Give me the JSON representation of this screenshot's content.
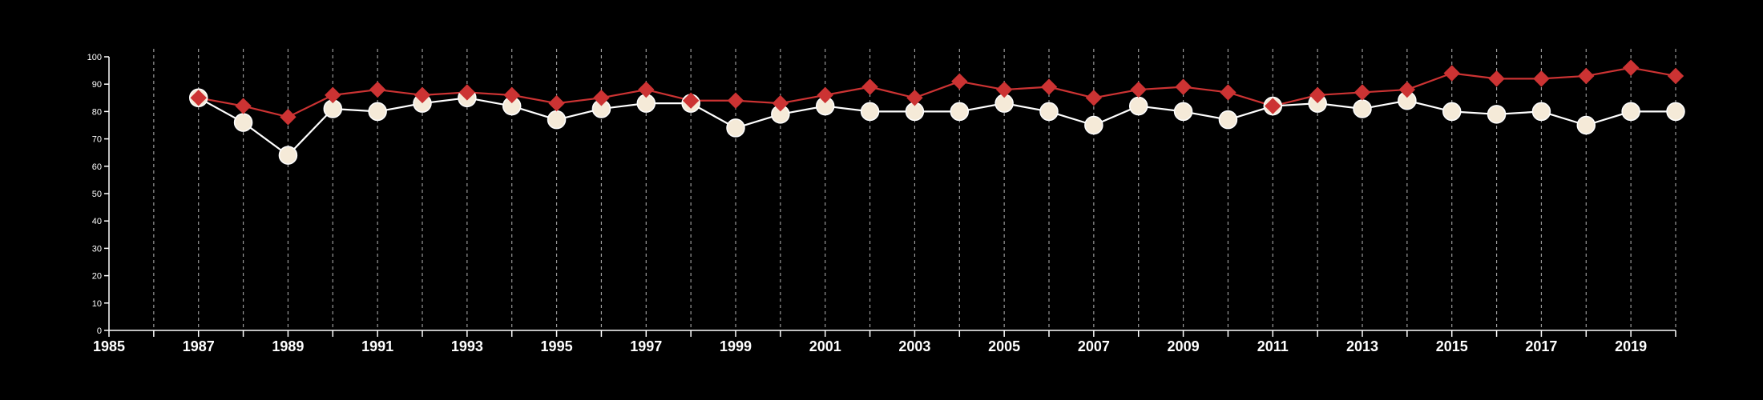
{
  "chart_data": {
    "type": "line",
    "title": "",
    "xlabel": "",
    "ylabel": "",
    "xlim": [
      1985,
      2020
    ],
    "ylim": [
      0,
      100
    ],
    "xticks": [
      1985,
      1987,
      1989,
      1991,
      1993,
      1995,
      1997,
      1999,
      2001,
      2003,
      2005,
      2007,
      2009,
      2011,
      2013,
      2015,
      2017,
      2019
    ],
    "yticks": [
      0,
      10,
      20,
      30,
      40,
      50,
      60,
      70,
      80,
      90,
      100
    ],
    "vertical_dashed_gridlines_every_year": [
      1986,
      2020
    ],
    "horizontal_grid": false,
    "legend": "none",
    "x": [
      1987,
      1988,
      1989,
      1990,
      1991,
      1992,
      1993,
      1994,
      1995,
      1996,
      1997,
      1998,
      1999,
      2000,
      2001,
      2002,
      2003,
      2004,
      2005,
      2006,
      2007,
      2008,
      2009,
      2010,
      2011,
      2012,
      2013,
      2014,
      2015,
      2016,
      2017,
      2018,
      2019,
      2020
    ],
    "series": [
      {
        "marker": "circle",
        "line_color": "#ffffff",
        "marker_color": "#f5ead8",
        "values": [
          85,
          76,
          64,
          81,
          80,
          83,
          85,
          82,
          77,
          81,
          83,
          83,
          74,
          79,
          82,
          80,
          80,
          80,
          83,
          80,
          75,
          82,
          80,
          77,
          82,
          83,
          81,
          84,
          80,
          79,
          80,
          75,
          80,
          80
        ]
      },
      {
        "marker": "diamond",
        "line_color": "#cc3333",
        "marker_color": "#cc3333",
        "values": [
          85,
          82,
          78,
          86,
          88,
          86,
          87,
          86,
          83,
          85,
          88,
          84,
          84,
          83,
          86,
          89,
          85,
          91,
          88,
          89,
          85,
          88,
          89,
          87,
          82,
          86,
          87,
          88,
          94,
          92,
          92,
          93,
          96,
          93
        ]
      }
    ]
  }
}
